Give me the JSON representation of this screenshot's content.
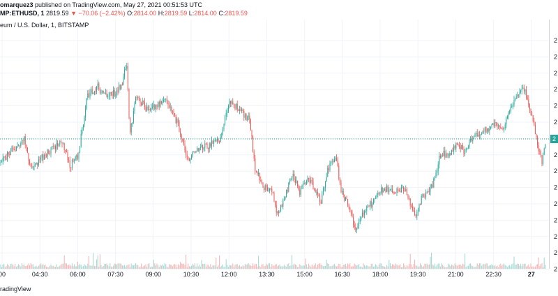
{
  "header": {
    "author": "omarquez3",
    "published_text": "published on TradingView.com, May 27, 2021 00:51:53 UTC",
    "symbol": "MP:ETHUSD, 1",
    "last_price": "2819.59",
    "change_arrow": "▼",
    "change": "−70.06 (−2.42%)",
    "o_label": "O:",
    "o_value": "2814.00",
    "h_label": "H:",
    "h_value": "2819.59",
    "l_label": "L:",
    "l_value": "2814.00",
    "c_label": "C:",
    "c_value": "2819.59"
  },
  "legend": "eum / U.S. Dollar, 1, BITSTAMP",
  "footer": {
    "text": "radingView"
  },
  "colors": {
    "up": "#26a69a",
    "down": "#ef5350",
    "price_line": "#26a69a",
    "grid": "#f0f3fa",
    "axis_text": "#131722",
    "price_tag": "#26a69a"
  },
  "chart_data": {
    "type": "candlestick",
    "x_ticks": [
      "00",
      "04:30",
      "06:00",
      "07:30",
      "09:00",
      "10:30",
      "12:00",
      "13:30",
      "15:00",
      "16:30",
      "18:00",
      "19:30",
      "21:00",
      "22:30",
      "27"
    ],
    "y_ticks": [
      "2",
      "2",
      "2",
      "2",
      "2",
      "2",
      "2",
      "2",
      "2",
      "2",
      "2",
      "2",
      "2",
      "2",
      "2"
    ],
    "current_price_tag": "2",
    "close_path": [
      [
        0,
        0.58
      ],
      [
        20,
        0.52
      ],
      [
        35,
        0.47
      ],
      [
        45,
        0.62
      ],
      [
        60,
        0.56
      ],
      [
        75,
        0.52
      ],
      [
        90,
        0.48
      ],
      [
        100,
        0.6
      ],
      [
        112,
        0.55
      ],
      [
        125,
        0.27
      ],
      [
        140,
        0.22
      ],
      [
        150,
        0.26
      ],
      [
        165,
        0.25
      ],
      [
        175,
        0.2
      ],
      [
        182,
        0.11
      ],
      [
        186,
        0.46
      ],
      [
        195,
        0.26
      ],
      [
        210,
        0.33
      ],
      [
        225,
        0.31
      ],
      [
        240,
        0.29
      ],
      [
        255,
        0.4
      ],
      [
        270,
        0.57
      ],
      [
        285,
        0.52
      ],
      [
        300,
        0.5
      ],
      [
        315,
        0.47
      ],
      [
        330,
        0.29
      ],
      [
        345,
        0.34
      ],
      [
        358,
        0.38
      ],
      [
        365,
        0.6
      ],
      [
        378,
        0.7
      ],
      [
        390,
        0.72
      ],
      [
        398,
        0.83
      ],
      [
        410,
        0.73
      ],
      [
        420,
        0.64
      ],
      [
        430,
        0.73
      ],
      [
        440,
        0.66
      ],
      [
        450,
        0.7
      ],
      [
        460,
        0.77
      ],
      [
        470,
        0.62
      ],
      [
        481,
        0.55
      ],
      [
        490,
        0.73
      ],
      [
        500,
        0.79
      ],
      [
        510,
        0.91
      ],
      [
        515,
        0.87
      ],
      [
        525,
        0.8
      ],
      [
        535,
        0.77
      ],
      [
        550,
        0.7
      ],
      [
        565,
        0.73
      ],
      [
        580,
        0.71
      ],
      [
        595,
        0.85
      ],
      [
        605,
        0.75
      ],
      [
        620,
        0.69
      ],
      [
        632,
        0.54
      ],
      [
        645,
        0.55
      ],
      [
        655,
        0.48
      ],
      [
        665,
        0.53
      ],
      [
        680,
        0.45
      ],
      [
        695,
        0.43
      ],
      [
        710,
        0.4
      ],
      [
        722,
        0.42
      ],
      [
        730,
        0.34
      ],
      [
        740,
        0.27
      ],
      [
        752,
        0.23
      ],
      [
        762,
        0.36
      ],
      [
        770,
        0.48
      ],
      [
        777,
        0.58
      ],
      [
        783,
        0.47
      ]
    ],
    "current_price_y": 0.47
  }
}
